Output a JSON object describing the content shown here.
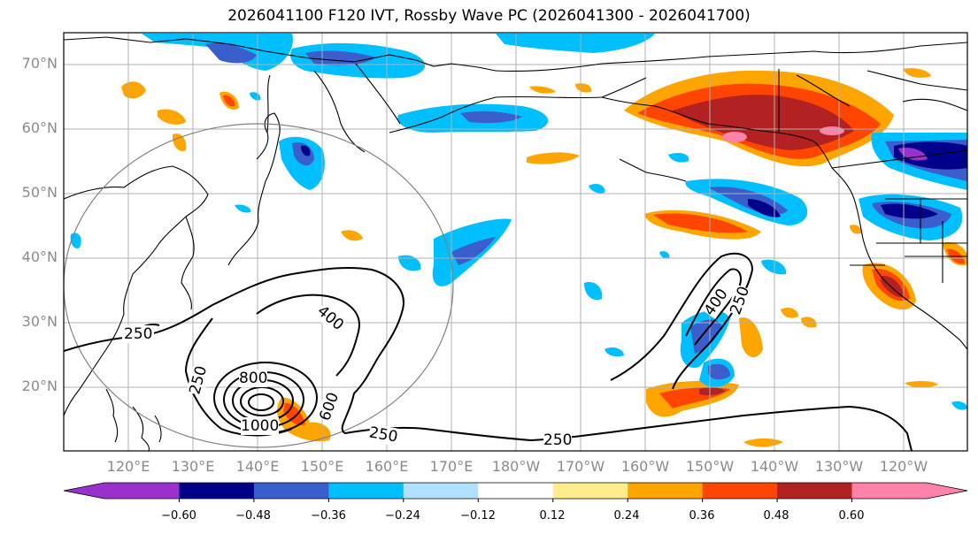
{
  "title": "2026041100 F120 IVT, Rossby Wave PC (2026041300 - 2026041700)",
  "lat_labels": [
    "70°N",
    "60°N",
    "50°N",
    "40°N",
    "30°N",
    "20°N"
  ],
  "lon_labels": [
    "120°E",
    "130°E",
    "140°E",
    "150°E",
    "160°E",
    "170°E",
    "180°W",
    "170°W",
    "160°W",
    "150°W",
    "140°W",
    "130°W",
    "120°W"
  ],
  "contour_labels": [
    "250",
    "250",
    "400",
    "800",
    "1000",
    "600",
    "250",
    "250",
    "400",
    "250"
  ],
  "colorbar": {
    "ticks": [
      "−0.60",
      "−0.48",
      "−0.36",
      "−0.24",
      "−0.12",
      "0.12",
      "0.24",
      "0.36",
      "0.48",
      "0.60"
    ],
    "colors": [
      "#9932CC",
      "#00008B",
      "#3A5FCD",
      "#00BFFF",
      "#B0E2FF",
      "#FFFFFF",
      "#FFEC8B",
      "#FFA500",
      "#FF4500",
      "#B22222",
      "#FF82AB"
    ]
  },
  "colors": {
    "positive_strong": "#B22222",
    "negative_strong": "#00008B",
    "circle": "#808080",
    "grid": "#b0b0b0"
  }
}
